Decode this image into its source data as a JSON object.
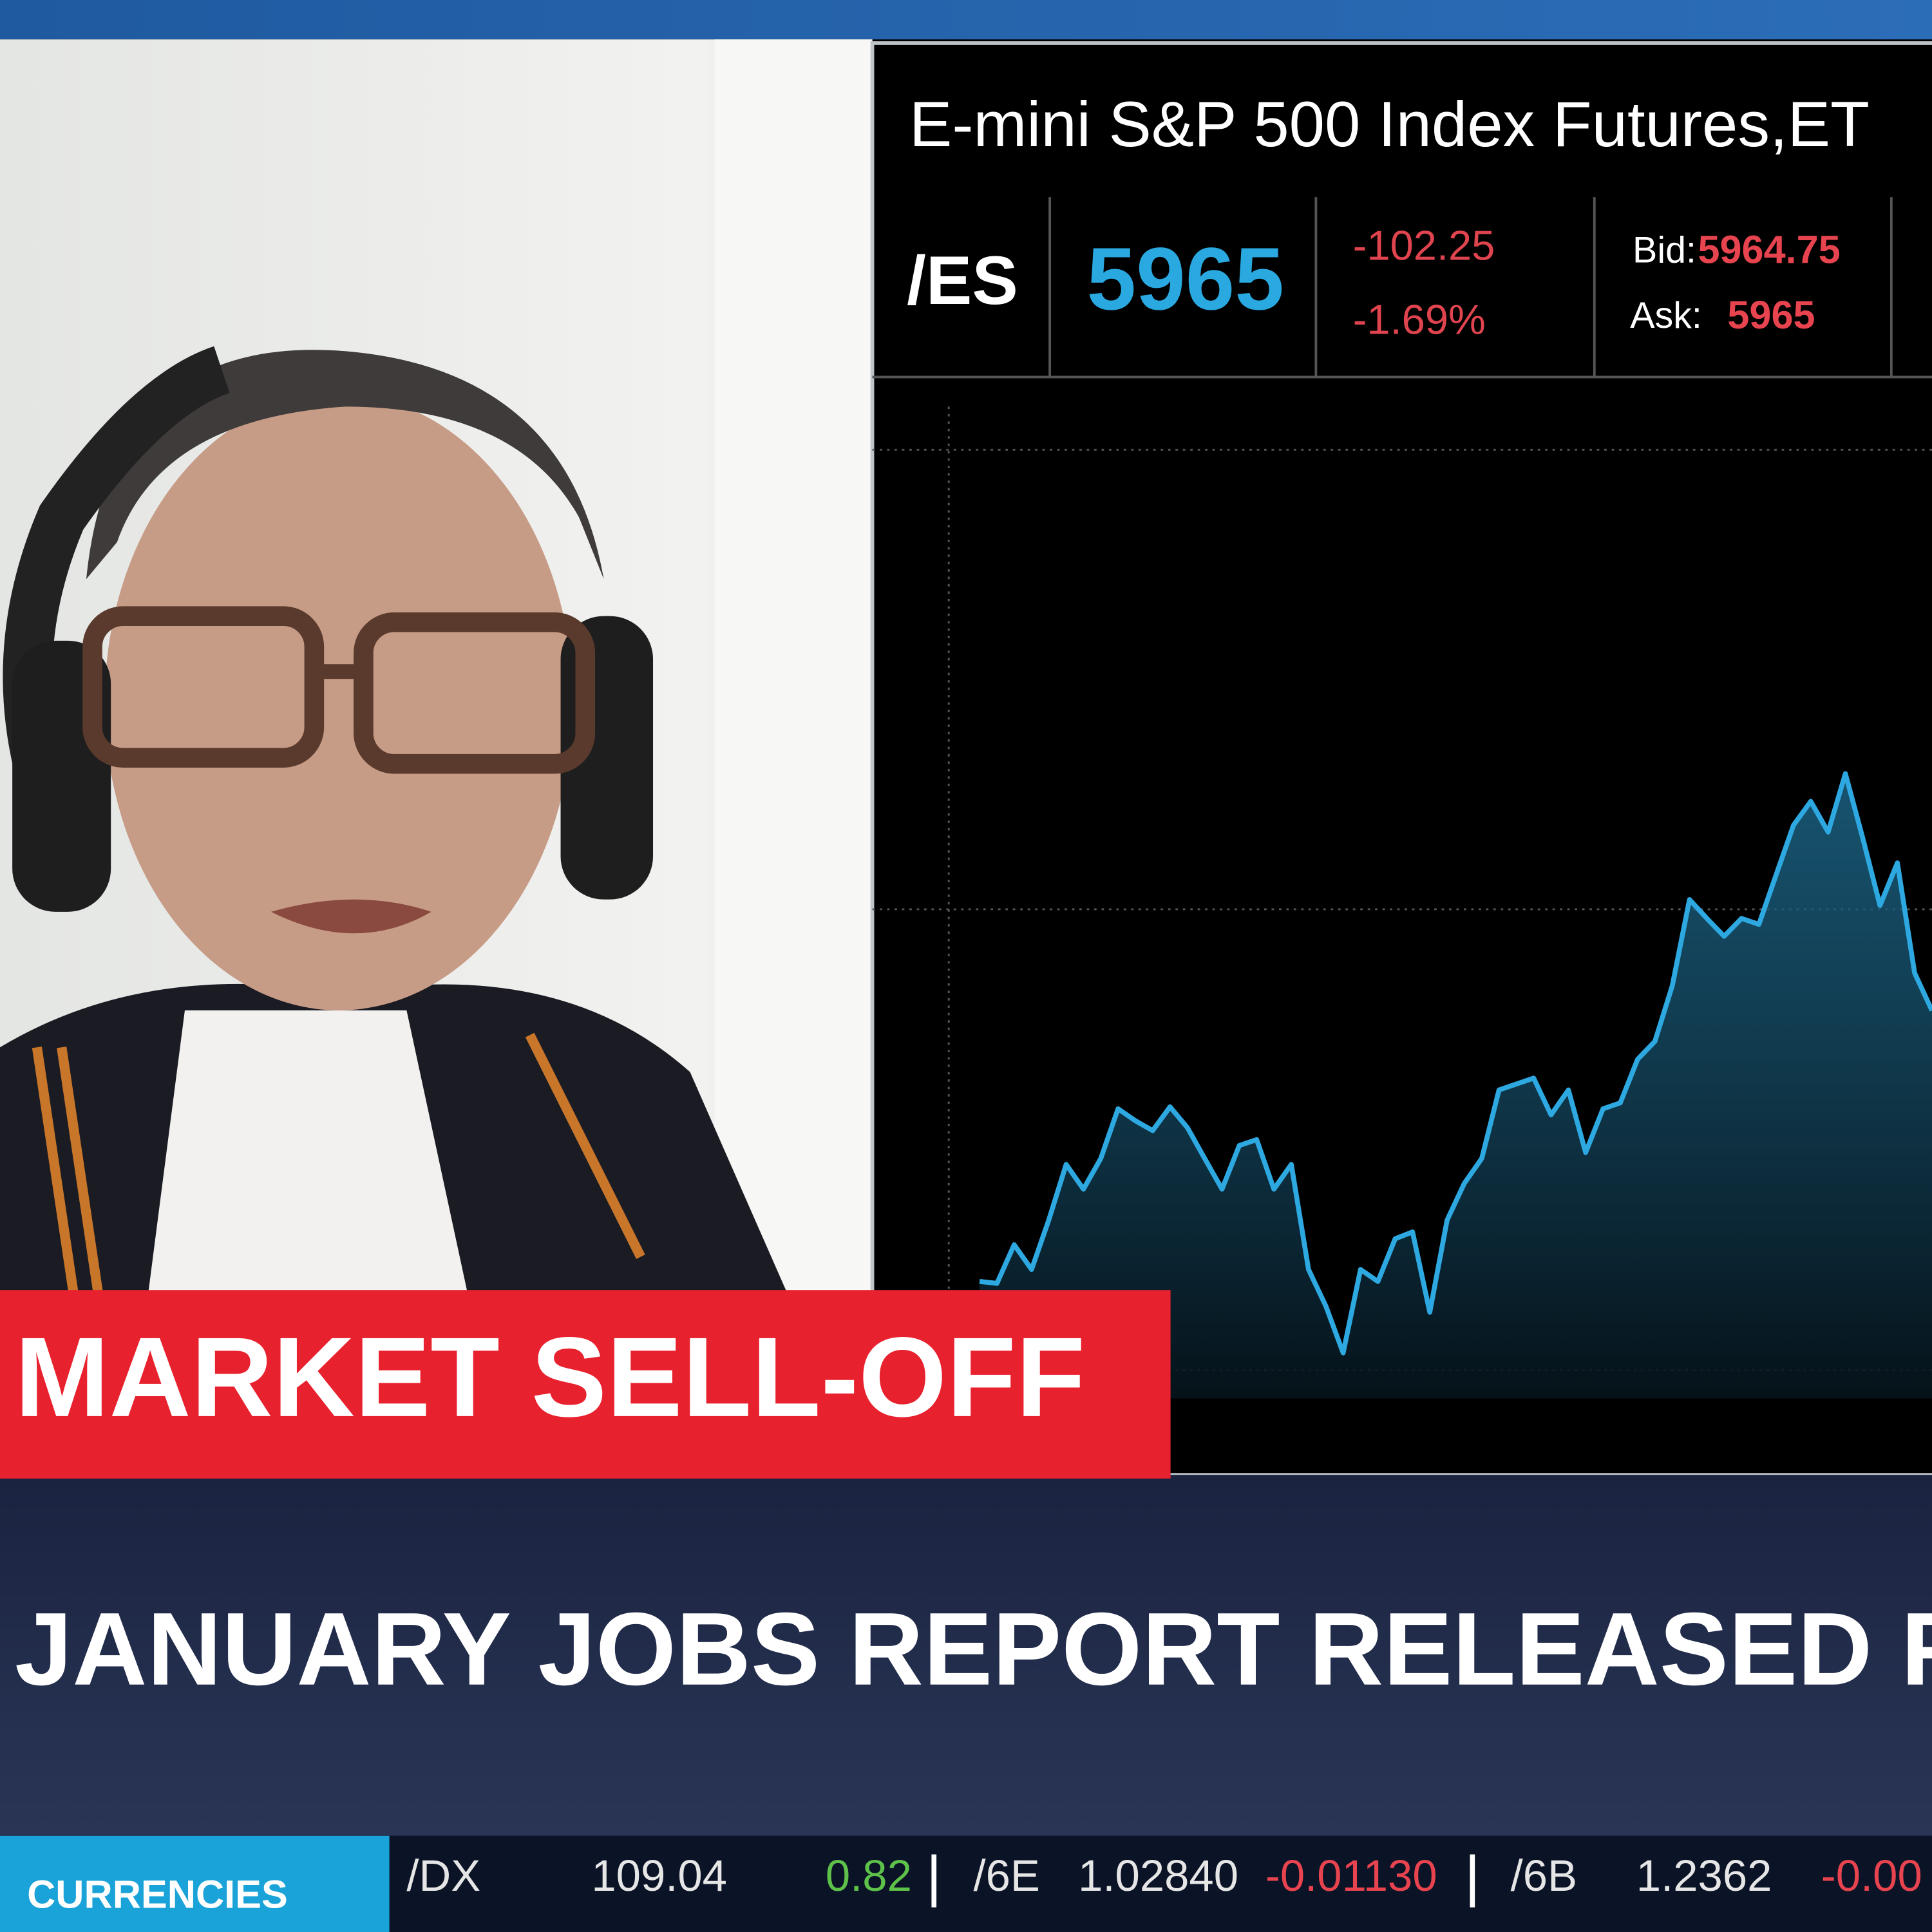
{
  "ticker_panel": {
    "title": "E-mini S&P 500 Index Futures,ET",
    "symbol": "/ES",
    "last": "5965",
    "change": "-102.25",
    "change_pct": "-1.69%",
    "bid_label": "Bid:",
    "bid": "5964.75",
    "ask_label": "Ask:",
    "ask": "5965"
  },
  "chart_data": {
    "type": "area",
    "color": "#2ea8e0",
    "ylim": [
      0,
      100
    ],
    "values": [
      11.8,
      11.6,
      15.5,
      13,
      18,
      23.6,
      21.1,
      24.2,
      29.2,
      28,
      27,
      29.4,
      27.3,
      24.2,
      21.1,
      25.5,
      26.1,
      21.1,
      23.6,
      13,
      9.3,
      4.6,
      13,
      11.8,
      16.1,
      16.8,
      8.7,
      18,
      21.7,
      24.2,
      31.1,
      31.7,
      32.3,
      28.6,
      31.1,
      24.8,
      29.2,
      29.8,
      34.2,
      36,
      41.6,
      50.3,
      48.4,
      46.6,
      48.4,
      47.8,
      52.8,
      57.8,
      60.2,
      57.1,
      63,
      56.5,
      49.7,
      54,
      42.9,
      39.1
    ]
  },
  "lower_third": {
    "tag": "MARKET SELL-OFF",
    "headline": "JANUARY JOBS REPORT RELEASED FI"
  },
  "ticker": {
    "section": "CURRENCIES",
    "items": [
      {
        "symbol": "/DX",
        "price": "109.04",
        "change": "0.82"
      },
      {
        "symbol": "/6E",
        "price": "1.02840",
        "change": "-0.01130"
      },
      {
        "symbol": "/6B",
        "price": "1.2362",
        "change": "-0.00"
      }
    ]
  }
}
